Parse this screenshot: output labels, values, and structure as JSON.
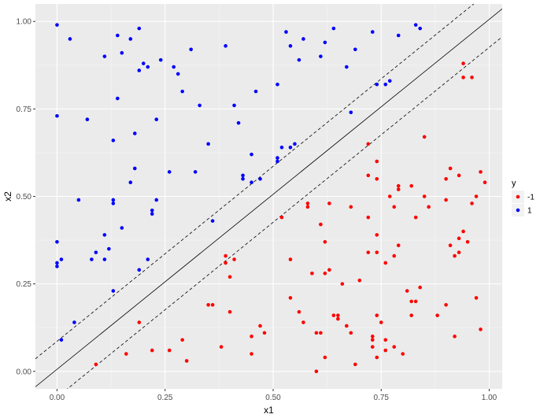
{
  "chart_data": {
    "type": "scatter",
    "xlabel": "x1",
    "ylabel": "x2",
    "xlim": [
      -0.05,
      1.03
    ],
    "ylim": [
      -0.05,
      1.05
    ],
    "x_ticks": [
      0.0,
      0.25,
      0.5,
      0.75,
      1.0
    ],
    "x_tick_labels": [
      "0.00",
      "0.25",
      "0.50",
      "0.75",
      "1.00"
    ],
    "y_ticks": [
      0.0,
      0.25,
      0.5,
      0.75,
      1.0
    ],
    "y_tick_labels": [
      "0.00",
      "0.25",
      "0.50",
      "0.75",
      "1.00"
    ],
    "grid": true,
    "legend": {
      "title": "y",
      "position": "right",
      "entries": [
        {
          "label": "-1",
          "color": "#ff0000"
        },
        {
          "label": "1",
          "color": "#0000ff"
        }
      ]
    },
    "lines": [
      {
        "style": "solid",
        "intercept": 0.006,
        "slope": 1.0
      },
      {
        "style": "dashed",
        "intercept": 0.086,
        "slope": 1.0
      },
      {
        "style": "dashed",
        "intercept": -0.074,
        "slope": 1.0
      }
    ],
    "series": [
      {
        "name": "-1",
        "color": "#ff0000",
        "points": [
          [
            0.09,
            0.02
          ],
          [
            0.16,
            0.05
          ],
          [
            0.19,
            0.14
          ],
          [
            0.22,
            0.06
          ],
          [
            0.26,
            0.06
          ],
          [
            0.29,
            0.09
          ],
          [
            0.3,
            0.03
          ],
          [
            0.35,
            0.19
          ],
          [
            0.36,
            0.19
          ],
          [
            0.38,
            0.07
          ],
          [
            0.39,
            0.31
          ],
          [
            0.39,
            0.33
          ],
          [
            0.4,
            0.27
          ],
          [
            0.4,
            0.17
          ],
          [
            0.41,
            0.32
          ],
          [
            0.45,
            0.05
          ],
          [
            0.45,
            0.1
          ],
          [
            0.47,
            0.13
          ],
          [
            0.48,
            0.11
          ],
          [
            0.52,
            0.44
          ],
          [
            0.54,
            0.21
          ],
          [
            0.54,
            0.32
          ],
          [
            0.56,
            0.17
          ],
          [
            0.57,
            0.14
          ],
          [
            0.58,
            0.48
          ],
          [
            0.58,
            0.47
          ],
          [
            0.59,
            0.28
          ],
          [
            0.6,
            0.11
          ],
          [
            0.6,
            0.0
          ],
          [
            0.61,
            0.11
          ],
          [
            0.61,
            0.42
          ],
          [
            0.62,
            0.37
          ],
          [
            0.62,
            0.04
          ],
          [
            0.62,
            0.28
          ],
          [
            0.63,
            0.29
          ],
          [
            0.63,
            0.48
          ],
          [
            0.64,
            0.16
          ],
          [
            0.65,
            0.16
          ],
          [
            0.65,
            0.15
          ],
          [
            0.66,
            0.25
          ],
          [
            0.67,
            0.13
          ],
          [
            0.68,
            0.11
          ],
          [
            0.68,
            0.47
          ],
          [
            0.69,
            0.02
          ],
          [
            0.7,
            0.26
          ],
          [
            0.72,
            0.65
          ],
          [
            0.72,
            0.56
          ],
          [
            0.72,
            0.44
          ],
          [
            0.72,
            0.34
          ],
          [
            0.73,
            0.07
          ],
          [
            0.73,
            0.1
          ],
          [
            0.73,
            0.09
          ],
          [
            0.74,
            0.6
          ],
          [
            0.74,
            0.55
          ],
          [
            0.74,
            0.39
          ],
          [
            0.74,
            0.34
          ],
          [
            0.74,
            0.04
          ],
          [
            0.74,
            0.16
          ],
          [
            0.75,
            0.14
          ],
          [
            0.76,
            0.06
          ],
          [
            0.76,
            0.09
          ],
          [
            0.76,
            0.31
          ],
          [
            0.77,
            0.5
          ],
          [
            0.78,
            0.47
          ],
          [
            0.78,
            0.33
          ],
          [
            0.78,
            0.07
          ],
          [
            0.79,
            0.36
          ],
          [
            0.79,
            0.52
          ],
          [
            0.79,
            0.53
          ],
          [
            0.8,
            0.05
          ],
          [
            0.81,
            0.23
          ],
          [
            0.82,
            0.16
          ],
          [
            0.82,
            0.53
          ],
          [
            0.82,
            0.2
          ],
          [
            0.83,
            0.2
          ],
          [
            0.83,
            0.44
          ],
          [
            0.84,
            0.24
          ],
          [
            0.85,
            0.67
          ],
          [
            0.85,
            0.5
          ],
          [
            0.86,
            0.47
          ],
          [
            0.88,
            0.16
          ],
          [
            0.9,
            0.49
          ],
          [
            0.9,
            0.55
          ],
          [
            0.9,
            0.19
          ],
          [
            0.91,
            0.58
          ],
          [
            0.91,
            0.36
          ],
          [
            0.92,
            0.33
          ],
          [
            0.92,
            0.1
          ],
          [
            0.93,
            0.34
          ],
          [
            0.93,
            0.38
          ],
          [
            0.93,
            0.56
          ],
          [
            0.94,
            0.88
          ],
          [
            0.94,
            0.84
          ],
          [
            0.94,
            0.4
          ],
          [
            0.95,
            0.37
          ],
          [
            0.96,
            0.84
          ],
          [
            0.96,
            0.48
          ],
          [
            0.97,
            0.5
          ],
          [
            0.97,
            0.21
          ],
          [
            0.98,
            0.57
          ],
          [
            0.98,
            0.12
          ],
          [
            0.99,
            0.54
          ]
        ]
      },
      {
        "name": "1",
        "color": "#0000ff",
        "points": [
          [
            0.0,
            0.99
          ],
          [
            0.0,
            0.73
          ],
          [
            0.0,
            0.37
          ],
          [
            0.0,
            0.3
          ],
          [
            0.0,
            0.31
          ],
          [
            0.01,
            0.32
          ],
          [
            0.01,
            0.09
          ],
          [
            0.03,
            0.95
          ],
          [
            0.04,
            0.14
          ],
          [
            0.05,
            0.49
          ],
          [
            0.07,
            0.72
          ],
          [
            0.08,
            0.32
          ],
          [
            0.09,
            0.34
          ],
          [
            0.11,
            0.9
          ],
          [
            0.11,
            0.39
          ],
          [
            0.11,
            0.32
          ],
          [
            0.12,
            0.35
          ],
          [
            0.13,
            0.66
          ],
          [
            0.13,
            0.48
          ],
          [
            0.13,
            0.49
          ],
          [
            0.13,
            0.23
          ],
          [
            0.14,
            0.96
          ],
          [
            0.14,
            0.78
          ],
          [
            0.15,
            0.91
          ],
          [
            0.15,
            0.41
          ],
          [
            0.17,
            0.95
          ],
          [
            0.17,
            0.54
          ],
          [
            0.18,
            0.58
          ],
          [
            0.18,
            0.68
          ],
          [
            0.19,
            0.29
          ],
          [
            0.19,
            0.86
          ],
          [
            0.19,
            0.98
          ],
          [
            0.2,
            0.88
          ],
          [
            0.21,
            0.87
          ],
          [
            0.21,
            0.32
          ],
          [
            0.22,
            0.45
          ],
          [
            0.22,
            0.46
          ],
          [
            0.23,
            0.72
          ],
          [
            0.23,
            0.49
          ],
          [
            0.24,
            0.89
          ],
          [
            0.26,
            0.57
          ],
          [
            0.27,
            0.87
          ],
          [
            0.28,
            0.85
          ],
          [
            0.29,
            0.8
          ],
          [
            0.31,
            0.92
          ],
          [
            0.32,
            0.57
          ],
          [
            0.33,
            0.76
          ],
          [
            0.35,
            0.65
          ],
          [
            0.36,
            0.43
          ],
          [
            0.39,
            0.93
          ],
          [
            0.41,
            0.76
          ],
          [
            0.42,
            0.71
          ],
          [
            0.43,
            0.55
          ],
          [
            0.43,
            0.56
          ],
          [
            0.45,
            0.62
          ],
          [
            0.45,
            0.54
          ],
          [
            0.46,
            0.8
          ],
          [
            0.47,
            0.55
          ],
          [
            0.51,
            0.82
          ],
          [
            0.51,
            0.61
          ],
          [
            0.51,
            0.6
          ],
          [
            0.52,
            0.64
          ],
          [
            0.53,
            0.97
          ],
          [
            0.54,
            0.93
          ],
          [
            0.54,
            0.64
          ],
          [
            0.55,
            0.65
          ],
          [
            0.56,
            0.89
          ],
          [
            0.57,
            0.95
          ],
          [
            0.61,
            0.9
          ],
          [
            0.62,
            0.94
          ],
          [
            0.64,
            0.98
          ],
          [
            0.67,
            0.87
          ],
          [
            0.68,
            0.74
          ],
          [
            0.69,
            0.92
          ],
          [
            0.73,
            0.97
          ],
          [
            0.74,
            0.82
          ],
          [
            0.76,
            0.82
          ],
          [
            0.77,
            0.83
          ],
          [
            0.79,
            0.96
          ],
          [
            0.83,
            0.99
          ],
          [
            0.84,
            0.98
          ]
        ]
      }
    ]
  }
}
